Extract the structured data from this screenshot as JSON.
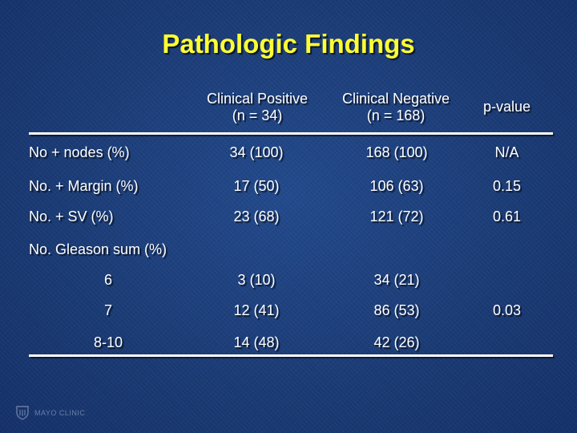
{
  "title": "Pathologic Findings",
  "columns": {
    "pos": {
      "line1": "Clinical Positive",
      "line2": "(n = 34)"
    },
    "neg": {
      "line1": "Clinical Negative",
      "line2": "(n = 168)"
    },
    "p": "p-value"
  },
  "rows": [
    {
      "label": "No + nodes (%)",
      "pos": "34 (100)",
      "neg": "168 (100)",
      "p": "N/A"
    },
    {
      "label": "No. + Margin (%)",
      "pos": "17 (50)",
      "neg": "106 (63)",
      "p": "0.15"
    },
    {
      "label": "No. + SV (%)",
      "pos": "23 (68)",
      "neg": "121 (72)",
      "p": "0.61"
    }
  ],
  "gleason": {
    "label": "No. Gleason sum (%)",
    "rows": [
      {
        "sum": "6",
        "pos": "3 (10)",
        "neg": "34 (21)"
      },
      {
        "sum": "7",
        "pos": "12 (41)",
        "neg": "86 (53)"
      },
      {
        "sum": "8-10",
        "pos": "14 (48)",
        "neg": "42 (26)"
      }
    ],
    "p": "0.03"
  },
  "logo": {
    "text": "MAYO CLINIC",
    "icon": "mayo-shield-icon"
  },
  "colors": {
    "background": "#1b3d78",
    "title": "#ffff33",
    "text": "#ffffff"
  }
}
